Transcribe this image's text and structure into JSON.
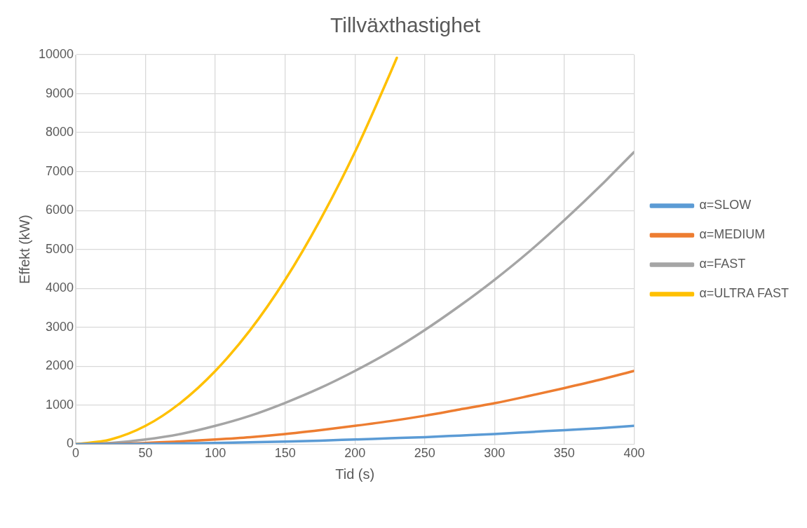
{
  "chart_data": {
    "type": "line",
    "title": "Tillväxthastighet",
    "xlabel": "Tid (s)",
    "ylabel": "Effekt (kW)",
    "x": [
      0,
      25,
      50,
      75,
      100,
      125,
      150,
      175,
      200,
      225,
      250,
      275,
      300,
      325,
      350,
      375,
      400
    ],
    "xlim": [
      0,
      400
    ],
    "xticks": [
      0,
      50,
      100,
      150,
      200,
      250,
      300,
      350,
      400
    ],
    "ylim": [
      0,
      10000
    ],
    "yticks": [
      0,
      1000,
      2000,
      3000,
      4000,
      5000,
      6000,
      7000,
      8000,
      9000,
      10000
    ],
    "grid": true,
    "legend": "right",
    "marker": "none",
    "line_style": "solid",
    "series": [
      {
        "name": "α=SLOW",
        "color": "#5b9bd5",
        "values": [
          0,
          2,
          7,
          16,
          29,
          46,
          66,
          90,
          120,
          150,
          180,
          220,
          260,
          310,
          360,
          410,
          470
        ]
      },
      {
        "name": "α=MEDIUM",
        "color": "#ed7d31",
        "values": [
          0,
          10,
          30,
          70,
          120,
          180,
          260,
          360,
          470,
          590,
          730,
          890,
          1050,
          1240,
          1440,
          1650,
          1880
        ]
      },
      {
        "name": "α=FAST",
        "color": "#a5a5a5",
        "values": [
          0,
          30,
          120,
          260,
          470,
          730,
          1060,
          1440,
          1880,
          2370,
          2930,
          3550,
          4220,
          4950,
          5750,
          6600,
          7500
        ]
      },
      {
        "name": "α=ULTRA FAST",
        "color": "#ffc000",
        "x": [
          0,
          25,
          50,
          75,
          100,
          125,
          150,
          175,
          200,
          225,
          230
        ],
        "values": [
          0,
          120,
          470,
          1060,
          1880,
          2930,
          4220,
          5750,
          7500,
          9500,
          9920
        ]
      }
    ]
  }
}
